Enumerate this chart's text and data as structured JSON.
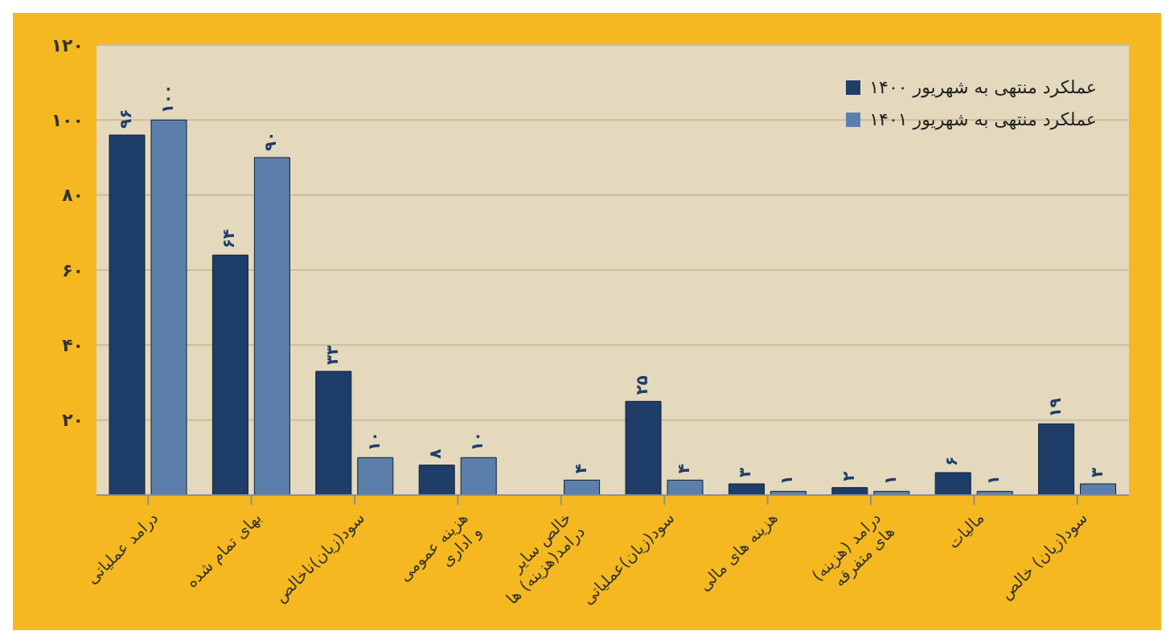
{
  "chart_data": {
    "type": "bar",
    "categories": [
      "درامد عملیاتی",
      "بهای تمام شده",
      "سود(زیان)ناخالص",
      "هزینه عمومی و اداری",
      "خالص سایر درامد(هزینه) ها",
      "سود(زیان)عملیاتی",
      "هزینه های مالی",
      "درامد (هزینه) های متفرقه",
      "مالیات",
      "سود(زیان) خالص"
    ],
    "series": [
      {
        "name": "عملکرد منتهی به شهریور ۱۴۰۰",
        "color": "#1f3d69",
        "values": [
          96,
          64,
          33,
          8,
          null,
          25,
          3,
          2,
          6,
          19
        ],
        "value_labels": [
          "۹۶",
          "۶۴",
          "۳۳",
          "۸",
          null,
          "۲۵",
          "۳",
          "۲",
          "۶",
          "۱۹"
        ]
      },
      {
        "name": "عملکرد منتهی به شهریور ۱۴۰۱",
        "color": "#5b7faa",
        "values": [
          100,
          90,
          10,
          10,
          4,
          4,
          1,
          1,
          1,
          3
        ],
        "value_labels": [
          "۱۰۰",
          "۹۰",
          "۱۰",
          "۱۰",
          "۴",
          "۴",
          "۱",
          "۱",
          "۱",
          "۳"
        ]
      }
    ],
    "ylim": [
      0,
      120
    ],
    "yticks": [
      {
        "value": 20,
        "label": "۲۰"
      },
      {
        "value": 40,
        "label": "۴۰"
      },
      {
        "value": 60,
        "label": "۶۰"
      },
      {
        "value": 80,
        "label": "۸۰"
      },
      {
        "value": 100,
        "label": "۱۰۰"
      },
      {
        "value": 120,
        "label": "۱۲۰"
      }
    ],
    "grid": "y",
    "legend": "top right"
  }
}
